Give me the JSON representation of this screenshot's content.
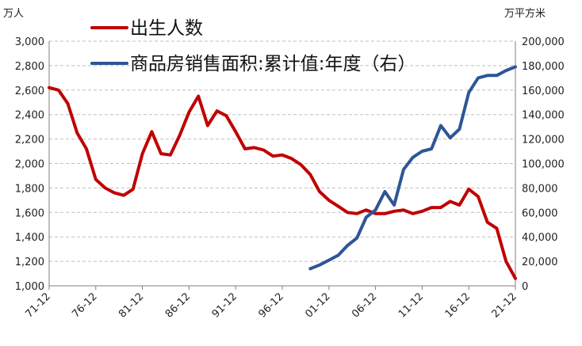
{
  "chart_data": {
    "type": "line",
    "y_unit_left": "万人",
    "y_unit_right": "万平方米",
    "x_ticks": [
      "71-12",
      "76-12",
      "81-12",
      "86-12",
      "91-12",
      "96-12",
      "01-12",
      "06-12",
      "11-12",
      "16-12",
      "21-12"
    ],
    "xlim": [
      1971,
      2021
    ],
    "ylim_left": [
      1000,
      3000
    ],
    "ylim_right": [
      0,
      200000
    ],
    "y_ticks_left": [
      "1,000",
      "1,200",
      "1,400",
      "1,600",
      "1,800",
      "2,000",
      "2,200",
      "2,400",
      "2,600",
      "2,800",
      "3,000"
    ],
    "y_ticks_right": [
      "0",
      "20,000",
      "40,000",
      "60,000",
      "80,000",
      "100,000",
      "120,000",
      "140,000",
      "160,000",
      "180,000",
      "200,000"
    ],
    "grid": true,
    "legend_position": "top-left",
    "series": [
      {
        "name": "出生人数",
        "axis": "left",
        "color": "#c00000",
        "x": [
          1971,
          1972,
          1973,
          1974,
          1975,
          1976,
          1977,
          1978,
          1979,
          1980,
          1981,
          1982,
          1983,
          1984,
          1985,
          1986,
          1987,
          1988,
          1989,
          1990,
          1991,
          1992,
          1993,
          1994,
          1995,
          1996,
          1997,
          1998,
          1999,
          2000,
          2001,
          2002,
          2003,
          2004,
          2005,
          2006,
          2007,
          2008,
          2009,
          2010,
          2011,
          2012,
          2013,
          2014,
          2015,
          2016,
          2017,
          2018,
          2019,
          2020,
          2021
        ],
        "values": [
          2620,
          2600,
          2490,
          2250,
          2120,
          1870,
          1800,
          1760,
          1740,
          1790,
          2080,
          2260,
          2080,
          2070,
          2230,
          2420,
          2550,
          2310,
          2430,
          2390,
          2260,
          2120,
          2130,
          2110,
          2060,
          2070,
          2040,
          1990,
          1910,
          1770,
          1700,
          1650,
          1600,
          1590,
          1620,
          1590,
          1590,
          1610,
          1620,
          1590,
          1610,
          1640,
          1640,
          1690,
          1660,
          1790,
          1730,
          1520,
          1470,
          1200,
          1060
        ]
      },
      {
        "name": "商品房销售面积:累计值:年度（右）",
        "axis": "right",
        "color": "#2e5597",
        "x": [
          1999,
          2000,
          2001,
          2002,
          2003,
          2004,
          2005,
          2006,
          2007,
          2008,
          2009,
          2010,
          2011,
          2012,
          2013,
          2014,
          2015,
          2016,
          2017,
          2018,
          2019,
          2020,
          2021
        ],
        "values": [
          14000,
          17000,
          21000,
          25000,
          33000,
          39000,
          56000,
          62000,
          77000,
          66000,
          95000,
          105000,
          110000,
          112000,
          131000,
          121000,
          128000,
          158000,
          170000,
          172000,
          172000,
          176000,
          179000
        ]
      }
    ]
  }
}
